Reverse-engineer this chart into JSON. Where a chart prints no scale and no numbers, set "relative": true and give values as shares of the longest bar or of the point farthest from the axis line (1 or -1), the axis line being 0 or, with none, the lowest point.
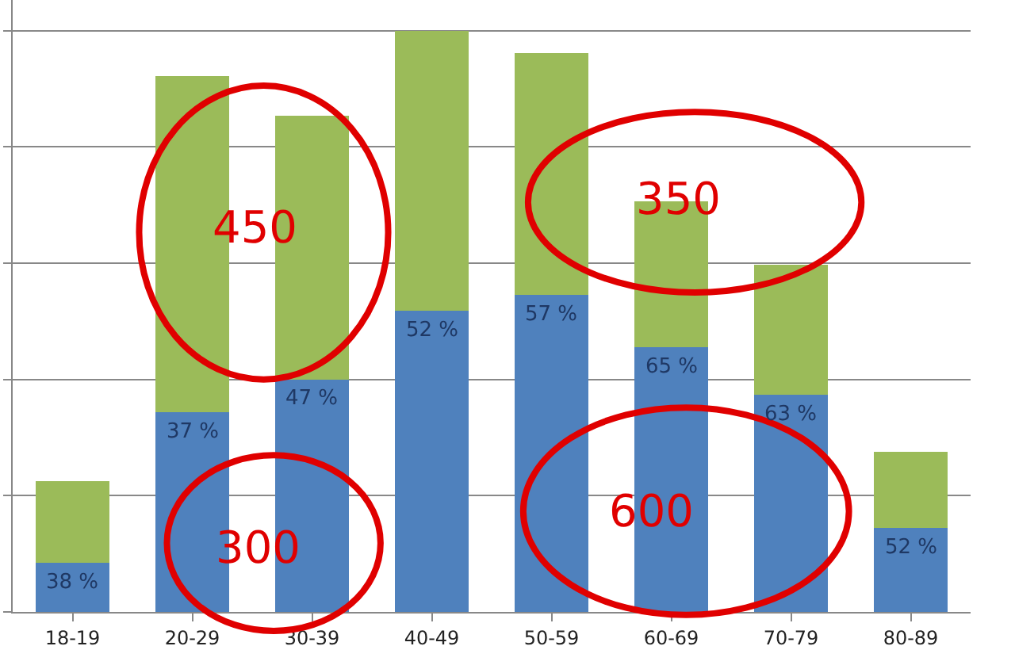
{
  "chart_data": {
    "type": "bar",
    "stacked": true,
    "relative": true,
    "grid": "y",
    "categories": [
      "18-19",
      "20-29",
      "30-39",
      "40-49",
      "50-59",
      "60-69",
      "70-79",
      "80-89"
    ],
    "series": [
      {
        "color": "#4f81bd",
        "values": [
          0.084,
          0.343,
          0.4,
          0.518,
          0.545,
          0.455,
          0.374,
          0.144
        ]
      },
      {
        "color": "#9bbb59",
        "values": [
          0.141,
          0.579,
          0.453,
          0.482,
          0.416,
          0.251,
          0.223,
          0.131
        ]
      }
    ],
    "annotations": [
      "450",
      "300",
      "350",
      "600",
      {
        "text": "38 %",
        "x": "18-19",
        "y": 0.084
      },
      {
        "text": "37 %",
        "x": "20-29",
        "y": 0.343
      },
      {
        "text": "47 %",
        "x": "30-39",
        "y": 0.4
      },
      {
        "text": "52 %",
        "x": "40-49",
        "y": 0.518
      },
      {
        "text": "57 %",
        "x": "50-59",
        "y": 0.545
      },
      {
        "text": "65 %",
        "x": "60-69",
        "y": 0.455
      },
      {
        "text": "63 %",
        "x": "70-79",
        "y": 0.374
      },
      {
        "text": "52 %",
        "x": "80-89",
        "y": 0.144
      }
    ]
  }
}
